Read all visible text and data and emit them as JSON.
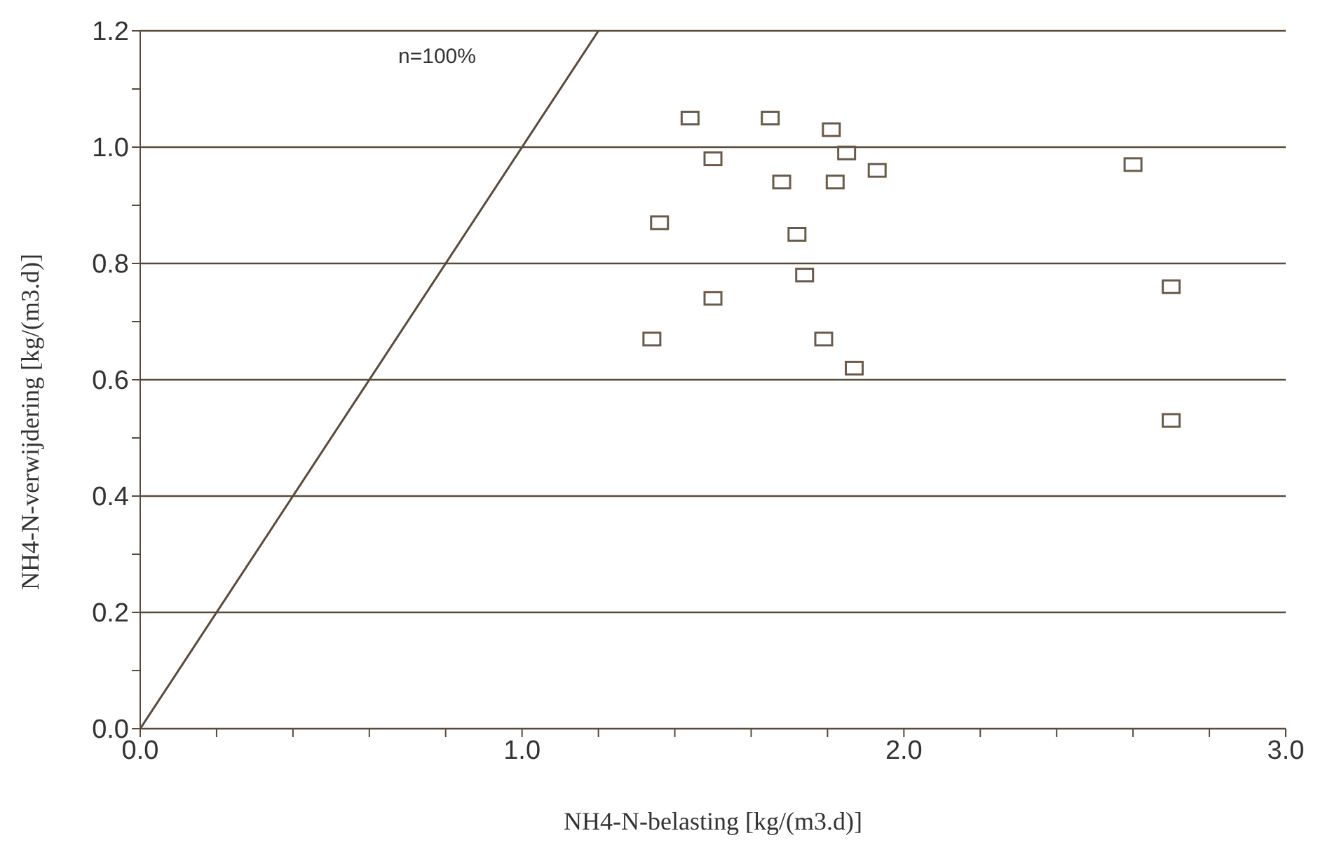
{
  "chart_data": {
    "type": "scatter",
    "xlabel": "NH4-N-belasting [kg/(m3.d)]",
    "ylabel": "NH4-N-verwijdering [kg/(m3.d)]",
    "xlim": [
      0,
      3
    ],
    "ylim": [
      0,
      1.2
    ],
    "xticks": [
      {
        "value": 0,
        "label": "0.0"
      },
      {
        "value": 0.2,
        "label": null
      },
      {
        "value": 0.4,
        "label": null
      },
      {
        "value": 0.6,
        "label": null
      },
      {
        "value": 0.8,
        "label": null
      },
      {
        "value": 1,
        "label": "1.0"
      },
      {
        "value": 1.2,
        "label": null
      },
      {
        "value": 1.4,
        "label": null
      },
      {
        "value": 1.6,
        "label": null
      },
      {
        "value": 1.8,
        "label": null
      },
      {
        "value": 2,
        "label": "2.0"
      },
      {
        "value": 2.2,
        "label": null
      },
      {
        "value": 2.4,
        "label": null
      },
      {
        "value": 2.6,
        "label": null
      },
      {
        "value": 2.8,
        "label": null
      },
      {
        "value": 3,
        "label": "3.0"
      }
    ],
    "yticks": [
      {
        "value": 0,
        "label": "0.0"
      },
      {
        "value": 0.1,
        "label": null
      },
      0.2,
      {
        "value": 0.3,
        "label": null
      },
      0.4,
      {
        "value": 0.5,
        "label": null
      },
      0.6,
      {
        "value": 0.7,
        "label": null
      },
      0.8,
      {
        "value": 0.9,
        "label": null
      },
      {
        "value": 1,
        "label": "1.0"
      },
      {
        "value": 1.1,
        "label": null
      },
      1.2
    ],
    "grid": "y",
    "marker": "square",
    "legend": false,
    "annotations": [
      "n=100%"
    ],
    "series": [
      {
        "color": "#6b5a4a",
        "x": [
          1.44,
          1.65,
          1.81,
          1.85,
          1.5,
          1.93,
          1.68,
          1.82,
          1.36,
          1.72,
          1.74,
          1.5,
          1.34,
          1.79,
          1.87,
          2.6,
          2.7,
          2.7
        ],
        "values": [
          1.05,
          1.05,
          1.03,
          0.99,
          0.98,
          0.96,
          0.94,
          0.94,
          0.87,
          0.85,
          0.78,
          0.74,
          0.67,
          0.67,
          0.62,
          0.97,
          0.76,
          0.53
        ]
      },
      {
        "type": "line",
        "color": "#5a4a3a",
        "x": [
          0,
          1.2
        ],
        "values": [
          0,
          1.2
        ],
        "marker": "none",
        "line_style": "solid"
      }
    ]
  }
}
